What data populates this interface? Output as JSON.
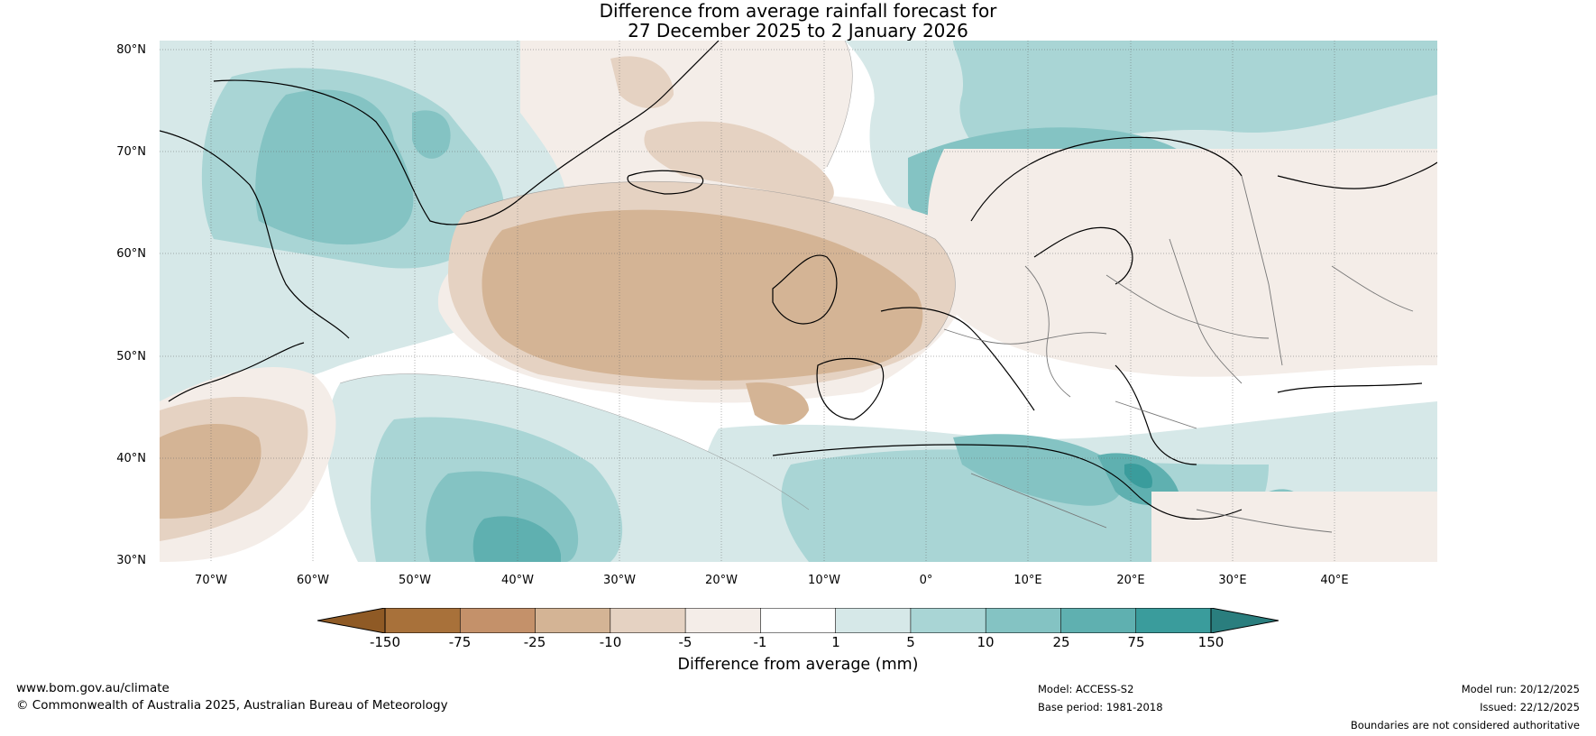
{
  "title": {
    "line1": "Difference from average rainfall forecast for",
    "line2": "27 December 2025 to 2 January 2026"
  },
  "map": {
    "lat_labels": [
      "80°N",
      "70°N",
      "60°N",
      "50°N",
      "40°N",
      "30°N"
    ],
    "lon_labels": [
      "70°W",
      "60°W",
      "50°W",
      "40°W",
      "30°W",
      "20°W",
      "10°W",
      "0°",
      "10°E",
      "20°E",
      "30°E",
      "40°E"
    ],
    "lat_range": [
      30,
      80
    ],
    "lon_range": [
      -75,
      50
    ],
    "land_label_icon": "coastline-icon"
  },
  "colorbar": {
    "ticks": [
      "-150",
      "-75",
      "-25",
      "-10",
      "-5",
      "-1",
      "1",
      "5",
      "10",
      "25",
      "75",
      "150"
    ],
    "colors": [
      "#a8713a",
      "#c4916a",
      "#d4b495",
      "#e5d2c2",
      "#f4ede8",
      "#ffffff",
      "#d6e8e8",
      "#a9d5d5",
      "#84c3c3",
      "#5fb0b0",
      "#3a9c9c"
    ],
    "under_color": "#8f5a25",
    "over_color": "#2a7e7e",
    "label": "Difference from average (mm)"
  },
  "footer": {
    "website": "www.bom.gov.au/climate",
    "copyright": "© Commonwealth of Australia 2025, Australian Bureau of Meteorology",
    "model": "Model: ACCESS-S2",
    "base_period": "Base period: 1981-2018",
    "model_run": "Model run: 20/12/2025",
    "issued": "Issued: 22/12/2025",
    "disclaimer": "Boundaries are not considered authoritative"
  }
}
